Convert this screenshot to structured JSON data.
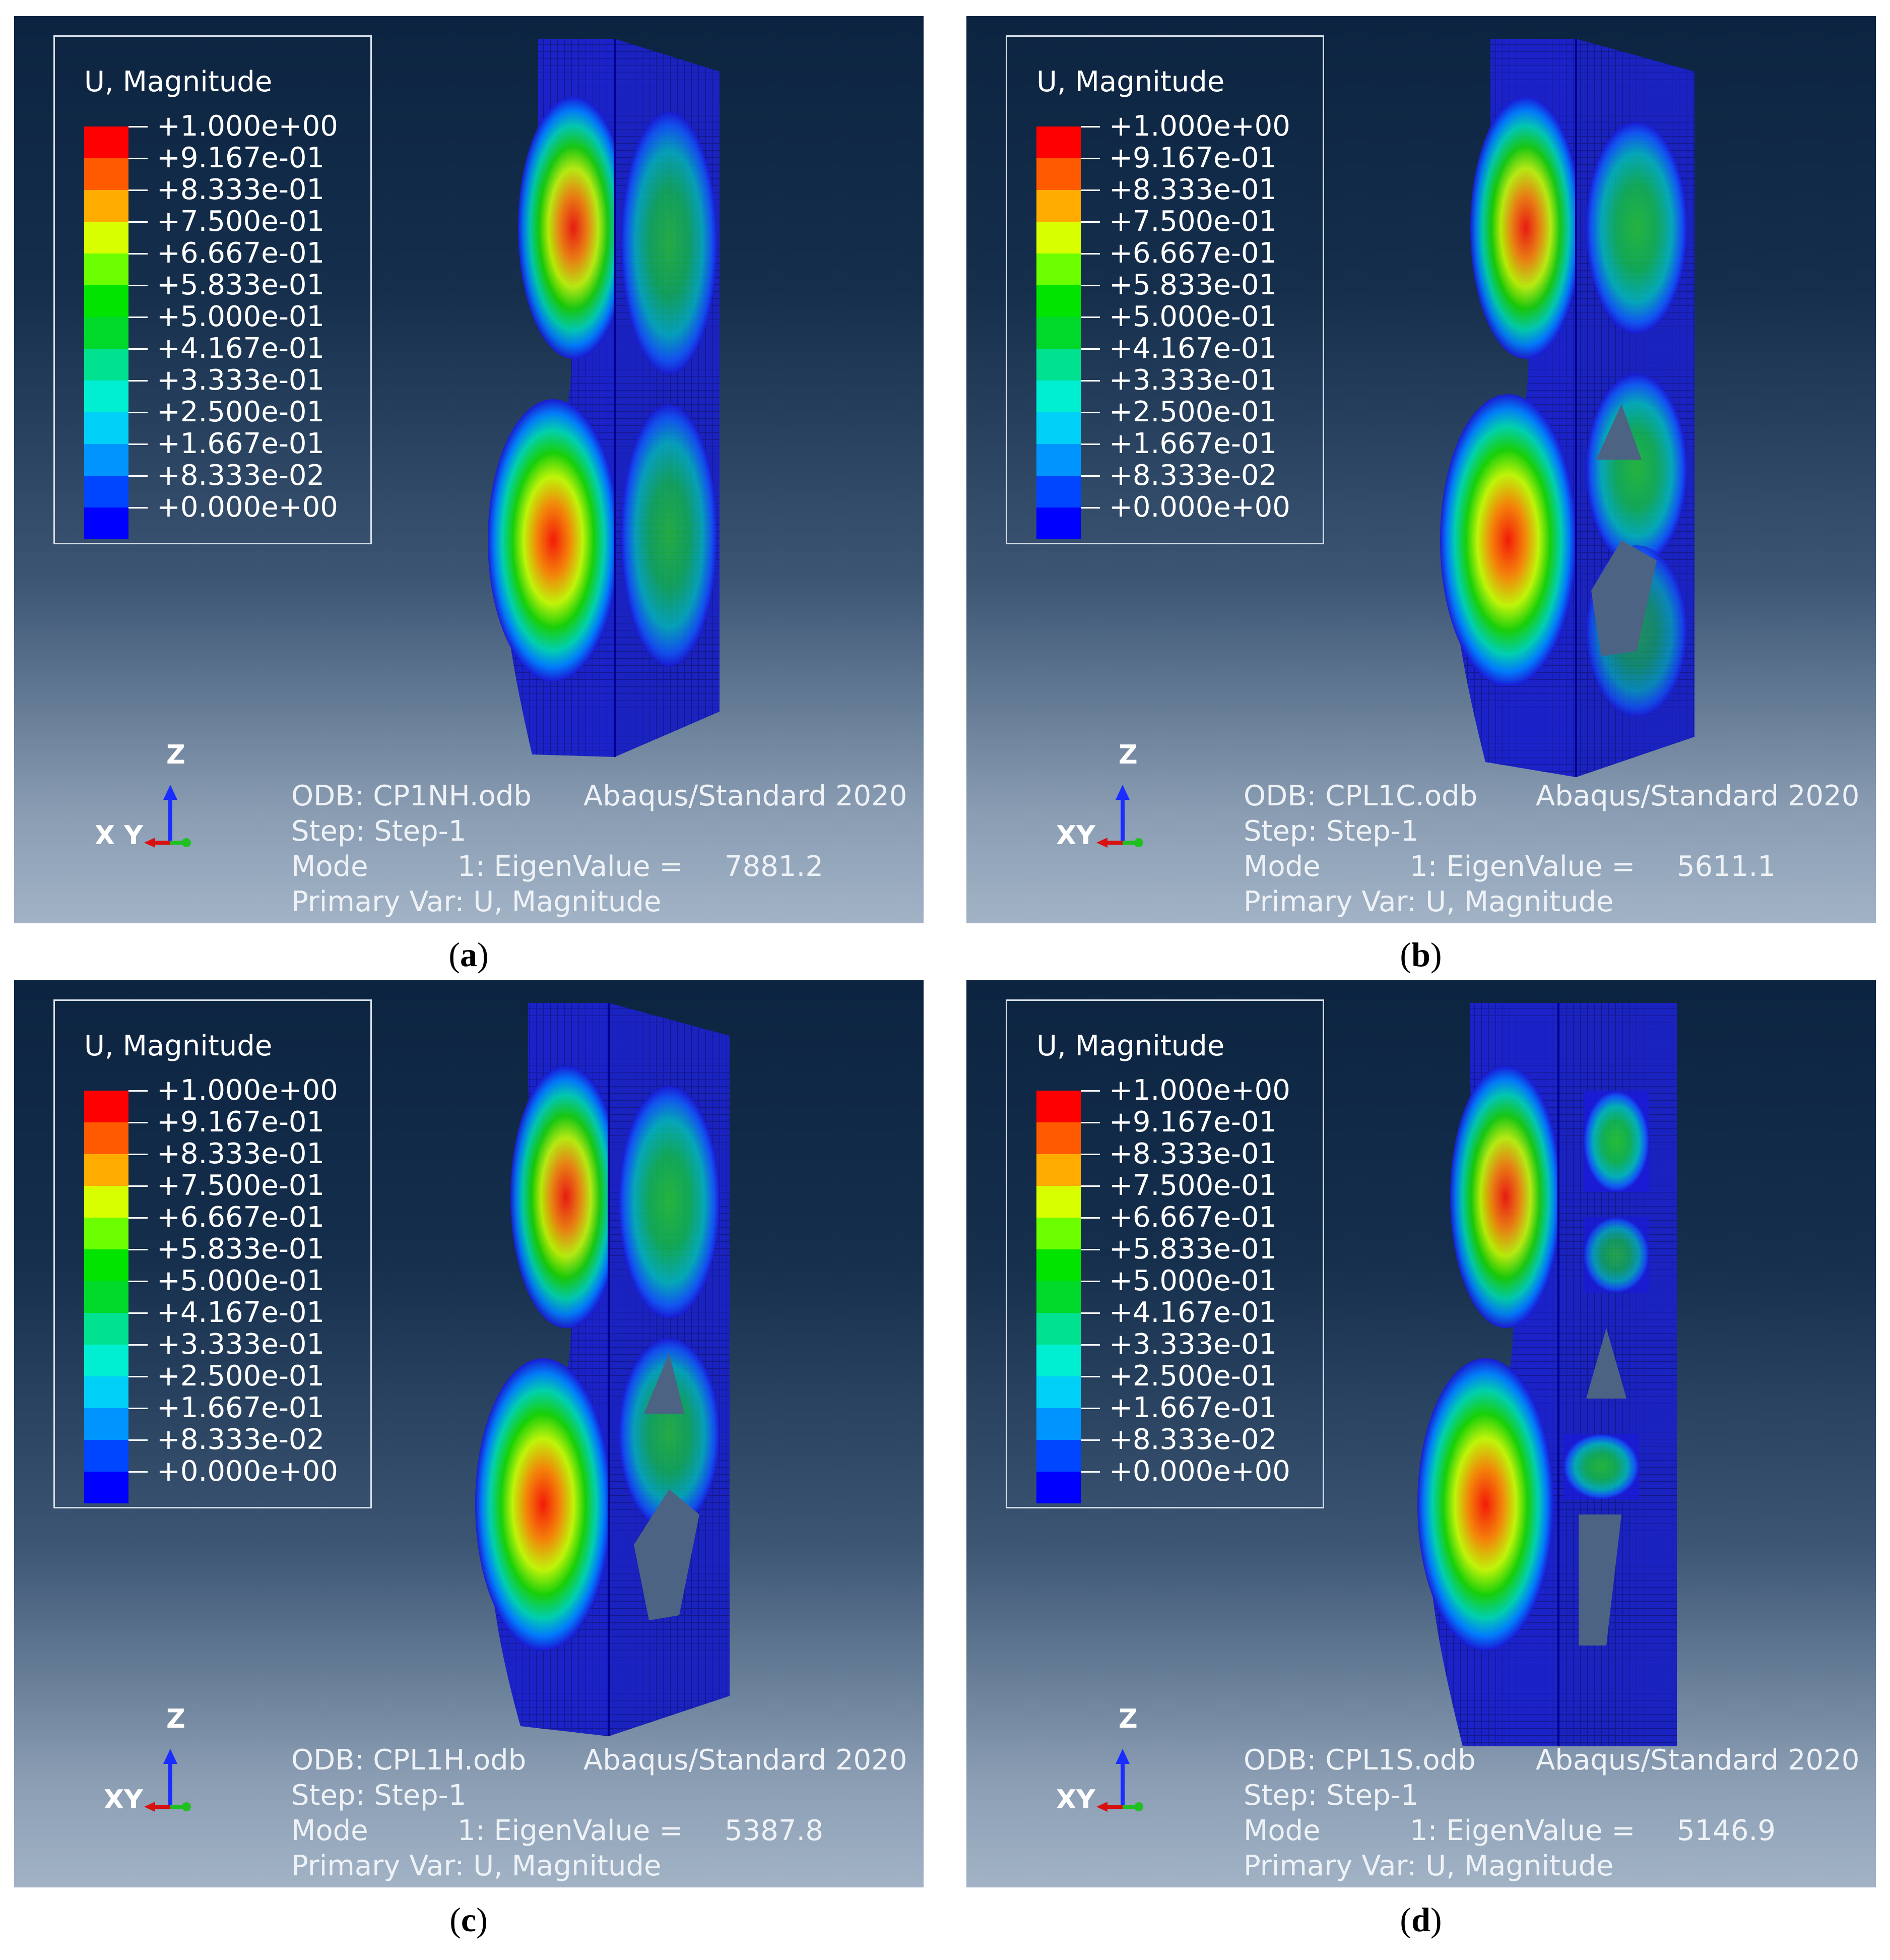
{
  "legend": {
    "title": "U, Magnitude",
    "labels": [
      "+1.000e+00",
      "+9.167e-01",
      "+8.333e-01",
      "+7.500e-01",
      "+6.667e-01",
      "+5.833e-01",
      "+5.000e-01",
      "+4.167e-01",
      "+3.333e-01",
      "+2.500e-01",
      "+1.667e-01",
      "+8.333e-02",
      "+0.000e+00"
    ],
    "colors": [
      "#ff0000",
      "#ff5a00",
      "#ffab00",
      "#d7ff00",
      "#6bff00",
      "#00e400",
      "#00d82a",
      "#00e28f",
      "#00efd3",
      "#00cff8",
      "#0094ff",
      "#0045ff",
      "#0000ff"
    ]
  },
  "triad": {
    "z": "Z",
    "xy": "XY",
    "xy_a": "X Y"
  },
  "info_labels": {
    "step": "Step: Step-1",
    "primary_var": "Primary Var: U, Magnitude",
    "software": "Abaqus/Standard 2020",
    "mode_prefix": "Mode",
    "mode_value_prefix": "1: EigenValue ="
  },
  "panels": [
    {
      "odb": "ODB: CP1NH.odb",
      "eigenvalue": "7881.2",
      "caption_letter": "a"
    },
    {
      "odb": "ODB: CPL1C.odb",
      "eigenvalue": "5611.1",
      "caption_letter": "b"
    },
    {
      "odb": "ODB: CPL1H.odb",
      "eigenvalue": "5387.8",
      "caption_letter": "c"
    },
    {
      "odb": "ODB: CPL1S.odb",
      "eigenvalue": "5146.9",
      "caption_letter": "d"
    }
  ]
}
